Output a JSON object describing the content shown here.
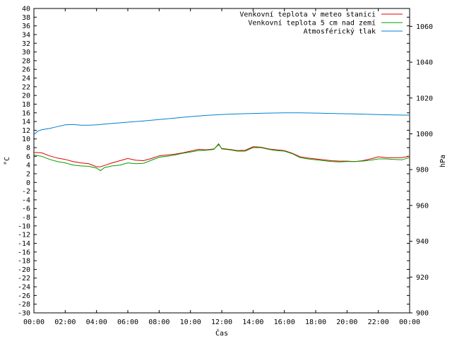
{
  "chart_data": {
    "type": "line",
    "xlabel": "Čas",
    "ylabel_left": "°C",
    "ylabel_right": "hPa",
    "xlim": [
      0,
      24
    ],
    "ylim_left": [
      -30,
      40
    ],
    "ylim_right": [
      900,
      1070
    ],
    "x_tick_labels": [
      "00:00",
      "02:00",
      "04:00",
      "06:00",
      "08:00",
      "10:00",
      "12:00",
      "14:00",
      "16:00",
      "18:00",
      "20:00",
      "22:00",
      "00:00"
    ],
    "y_left_ticks": [
      -30,
      -28,
      -26,
      -24,
      -22,
      -20,
      -18,
      -16,
      -14,
      -12,
      -10,
      -8,
      -6,
      -4,
      -2,
      0,
      2,
      4,
      6,
      8,
      10,
      12,
      14,
      16,
      18,
      20,
      22,
      24,
      26,
      28,
      30,
      32,
      34,
      36,
      38,
      40
    ],
    "y_left_tick_labels": [
      "-30",
      "-28",
      "-26",
      "-24",
      "-22",
      "-20",
      "-18",
      "-16",
      "-14",
      "-12",
      "-10",
      "-8",
      "-6",
      "-4",
      "-2",
      "0",
      "2",
      "4",
      "6",
      "8",
      "10",
      "12",
      "14",
      "16",
      "18",
      "20",
      "22",
      "24",
      "26",
      "28",
      "30",
      "32",
      "34",
      "36",
      "38",
      "40"
    ],
    "y_right_ticks": [
      900,
      920,
      940,
      960,
      980,
      1000,
      1020,
      1040,
      1060
    ],
    "y_right_tick_labels": [
      "900",
      "920",
      "940",
      "960",
      "980",
      "1000",
      "1020",
      "1040",
      "1060"
    ],
    "grid": false,
    "legend_position": "top-right",
    "series": [
      {
        "name": "Venkovní teplota v meteo stanici",
        "color": "#e00000",
        "axis": "left",
        "x": [
          0,
          0.5,
          1,
          1.5,
          2,
          2.5,
          3,
          3.5,
          4,
          4.25,
          4.5,
          5,
          5.5,
          6,
          6.5,
          7,
          7.5,
          8,
          8.5,
          9,
          9.5,
          10,
          10.5,
          11,
          11.5,
          11.8,
          12,
          12.5,
          13,
          13.5,
          14,
          14.5,
          15,
          15.5,
          16,
          16.5,
          17,
          17.5,
          18,
          18.5,
          19,
          19.5,
          20,
          20.5,
          21,
          21.5,
          22,
          22.5,
          23,
          23.5,
          24
        ],
        "y": [
          6.9,
          6.8,
          6.1,
          5.6,
          5.3,
          4.8,
          4.5,
          4.3,
          3.6,
          3.6,
          3.9,
          4.5,
          5.0,
          5.5,
          5.1,
          5.0,
          5.5,
          6.1,
          6.3,
          6.5,
          6.8,
          7.2,
          7.6,
          7.5,
          7.7,
          8.7,
          7.8,
          7.6,
          7.3,
          7.4,
          8.2,
          8.1,
          7.7,
          7.5,
          7.3,
          6.7,
          5.9,
          5.6,
          5.4,
          5.2,
          5.0,
          4.9,
          4.9,
          4.8,
          5.0,
          5.4,
          5.9,
          5.7,
          5.7,
          5.7,
          6.0
        ]
      },
      {
        "name": "Venkovní teplota 5 cm nad zemí",
        "color": "#00a000",
        "axis": "left",
        "x": [
          0,
          0.5,
          1,
          1.5,
          2,
          2.5,
          3,
          3.5,
          4,
          4.25,
          4.5,
          5,
          5.5,
          6,
          6.5,
          7,
          7.5,
          8,
          8.5,
          9,
          9.5,
          10,
          10.5,
          11,
          11.5,
          11.8,
          12,
          12.5,
          13,
          13.5,
          14,
          14.5,
          15,
          15.5,
          16,
          16.5,
          17,
          17.5,
          18,
          18.5,
          19,
          19.5,
          20,
          20.5,
          21,
          21.5,
          22,
          22.5,
          23,
          23.5,
          24
        ],
        "y": [
          6.3,
          6.0,
          5.3,
          4.8,
          4.5,
          4.0,
          3.8,
          3.7,
          3.3,
          2.7,
          3.4,
          3.8,
          4.0,
          4.5,
          4.3,
          4.4,
          5.1,
          5.8,
          6.0,
          6.3,
          6.7,
          7.0,
          7.3,
          7.4,
          7.6,
          8.9,
          7.7,
          7.5,
          7.2,
          7.2,
          8.0,
          8.0,
          7.6,
          7.3,
          7.2,
          6.6,
          5.7,
          5.4,
          5.2,
          5.0,
          4.8,
          4.7,
          4.8,
          4.8,
          4.9,
          5.1,
          5.4,
          5.4,
          5.3,
          5.2,
          5.7
        ]
      },
      {
        "name": "Atmosférický tlak",
        "color": "#0080d0",
        "axis": "right",
        "x": [
          0,
          0.25,
          0.5,
          1,
          1.5,
          2,
          2.5,
          3,
          3.5,
          4,
          5,
          6,
          7,
          8,
          9,
          10,
          11,
          12,
          13,
          14,
          15,
          16,
          17,
          18,
          19,
          20,
          21,
          22,
          23,
          24
        ],
        "y": [
          999.5,
          1001.5,
          1002.3,
          1003.0,
          1004.0,
          1005.0,
          1005.2,
          1004.8,
          1004.8,
          1005.0,
          1005.8,
          1006.5,
          1007.2,
          1008.0,
          1008.8,
          1009.6,
          1010.3,
          1010.8,
          1011.1,
          1011.4,
          1011.6,
          1011.7,
          1011.7,
          1011.6,
          1011.4,
          1011.2,
          1011.0,
          1010.7,
          1010.5,
          1010.4
        ]
      }
    ]
  }
}
